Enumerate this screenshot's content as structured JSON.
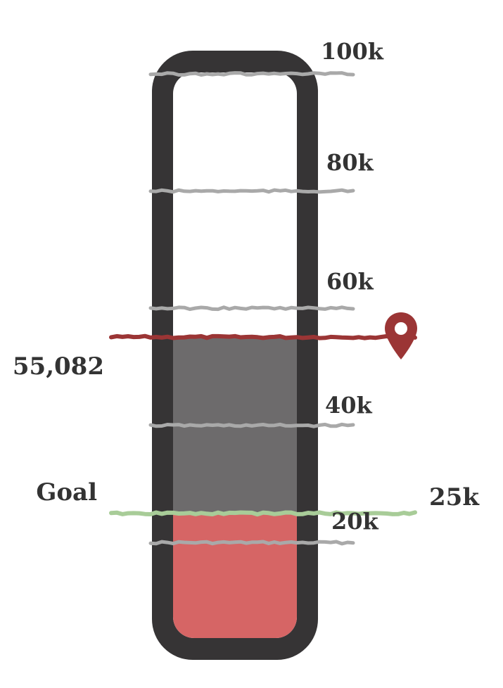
{
  "chart_data": {
    "type": "thermometer",
    "ticks": [
      {
        "value": 20000,
        "label": "20k"
      },
      {
        "value": 40000,
        "label": "40k"
      },
      {
        "value": 60000,
        "label": "60k"
      },
      {
        "value": 80000,
        "label": "80k"
      },
      {
        "value": 100000,
        "label": "100k"
      }
    ],
    "current": {
      "value": 55082,
      "label": "55,082"
    },
    "goal": {
      "value": 25000,
      "side_label": "Goal",
      "value_label": "25k"
    },
    "fills": [
      {
        "name": "raised-above-goal",
        "from": 25000,
        "to": 55082,
        "color": "#6d6b6c"
      },
      {
        "name": "raised-to-goal",
        "from": 0,
        "to": 25000,
        "color": "#d66565"
      }
    ],
    "colors": {
      "frame": "#363435",
      "inner": "#ffffff",
      "tick_line": "#a9a9a9",
      "current_line": "#9b3535",
      "goal_line": "#a8cc98",
      "marker": "#9b3535",
      "label_text": "#333333"
    }
  }
}
